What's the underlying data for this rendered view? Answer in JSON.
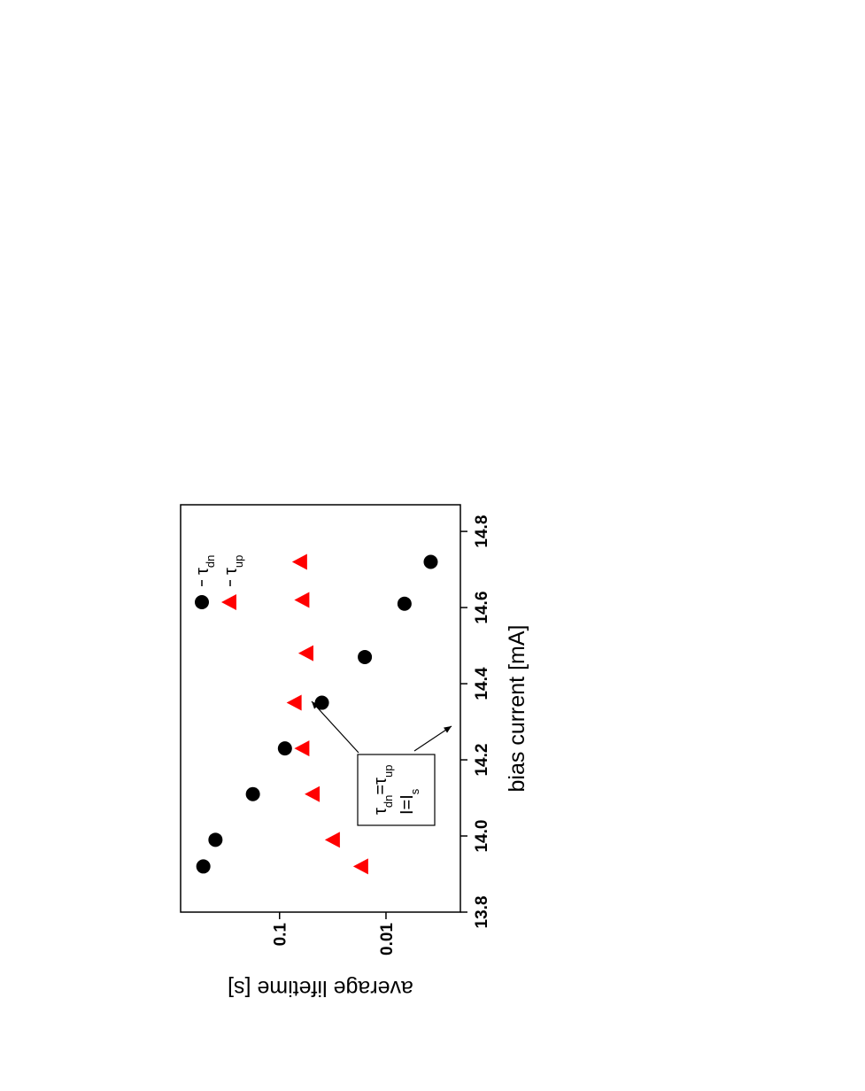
{
  "chart_data": {
    "type": "scatter",
    "x_label": "bias current  [mA]",
    "y_label": "average lifetime [s]",
    "xlim": [
      13.8,
      14.87
    ],
    "xticks": [
      13.8,
      {
        "value": 14,
        "label": "14.0"
      },
      14.2,
      14.4,
      14.6,
      14.8
    ],
    "ylim": [
      0.002,
      0.85
    ],
    "yticks": [
      0.1,
      0.01
    ],
    "log_y": true,
    "series": [
      {
        "name": "τ",
        "name_sub": "dn",
        "marker": "circle",
        "color": "#000000",
        "x": [
          13.92,
          13.99,
          14.11,
          14.23,
          14.35,
          14.47,
          14.61,
          14.72
        ],
        "values": [
          0.52,
          0.4,
          0.178,
          0.089,
          0.04,
          0.0158,
          0.0067,
          0.0038
        ]
      },
      {
        "name": "τ",
        "name_sub": "up",
        "marker": "triangle",
        "color": "#ff0000",
        "x": [
          13.92,
          13.99,
          14.11,
          14.23,
          14.35,
          14.48,
          14.62,
          14.72
        ],
        "values": [
          0.0168,
          0.031,
          0.048,
          0.06,
          0.071,
          0.055,
          0.06,
          0.063
        ]
      }
    ],
    "annotation": [
      [
        {
          "text": "τ",
          "sub": "dn"
        },
        {
          "text": "=τ",
          "sub": "up"
        }
      ],
      [
        {
          "text": "I=I",
          "sub": "s"
        }
      ]
    ]
  }
}
